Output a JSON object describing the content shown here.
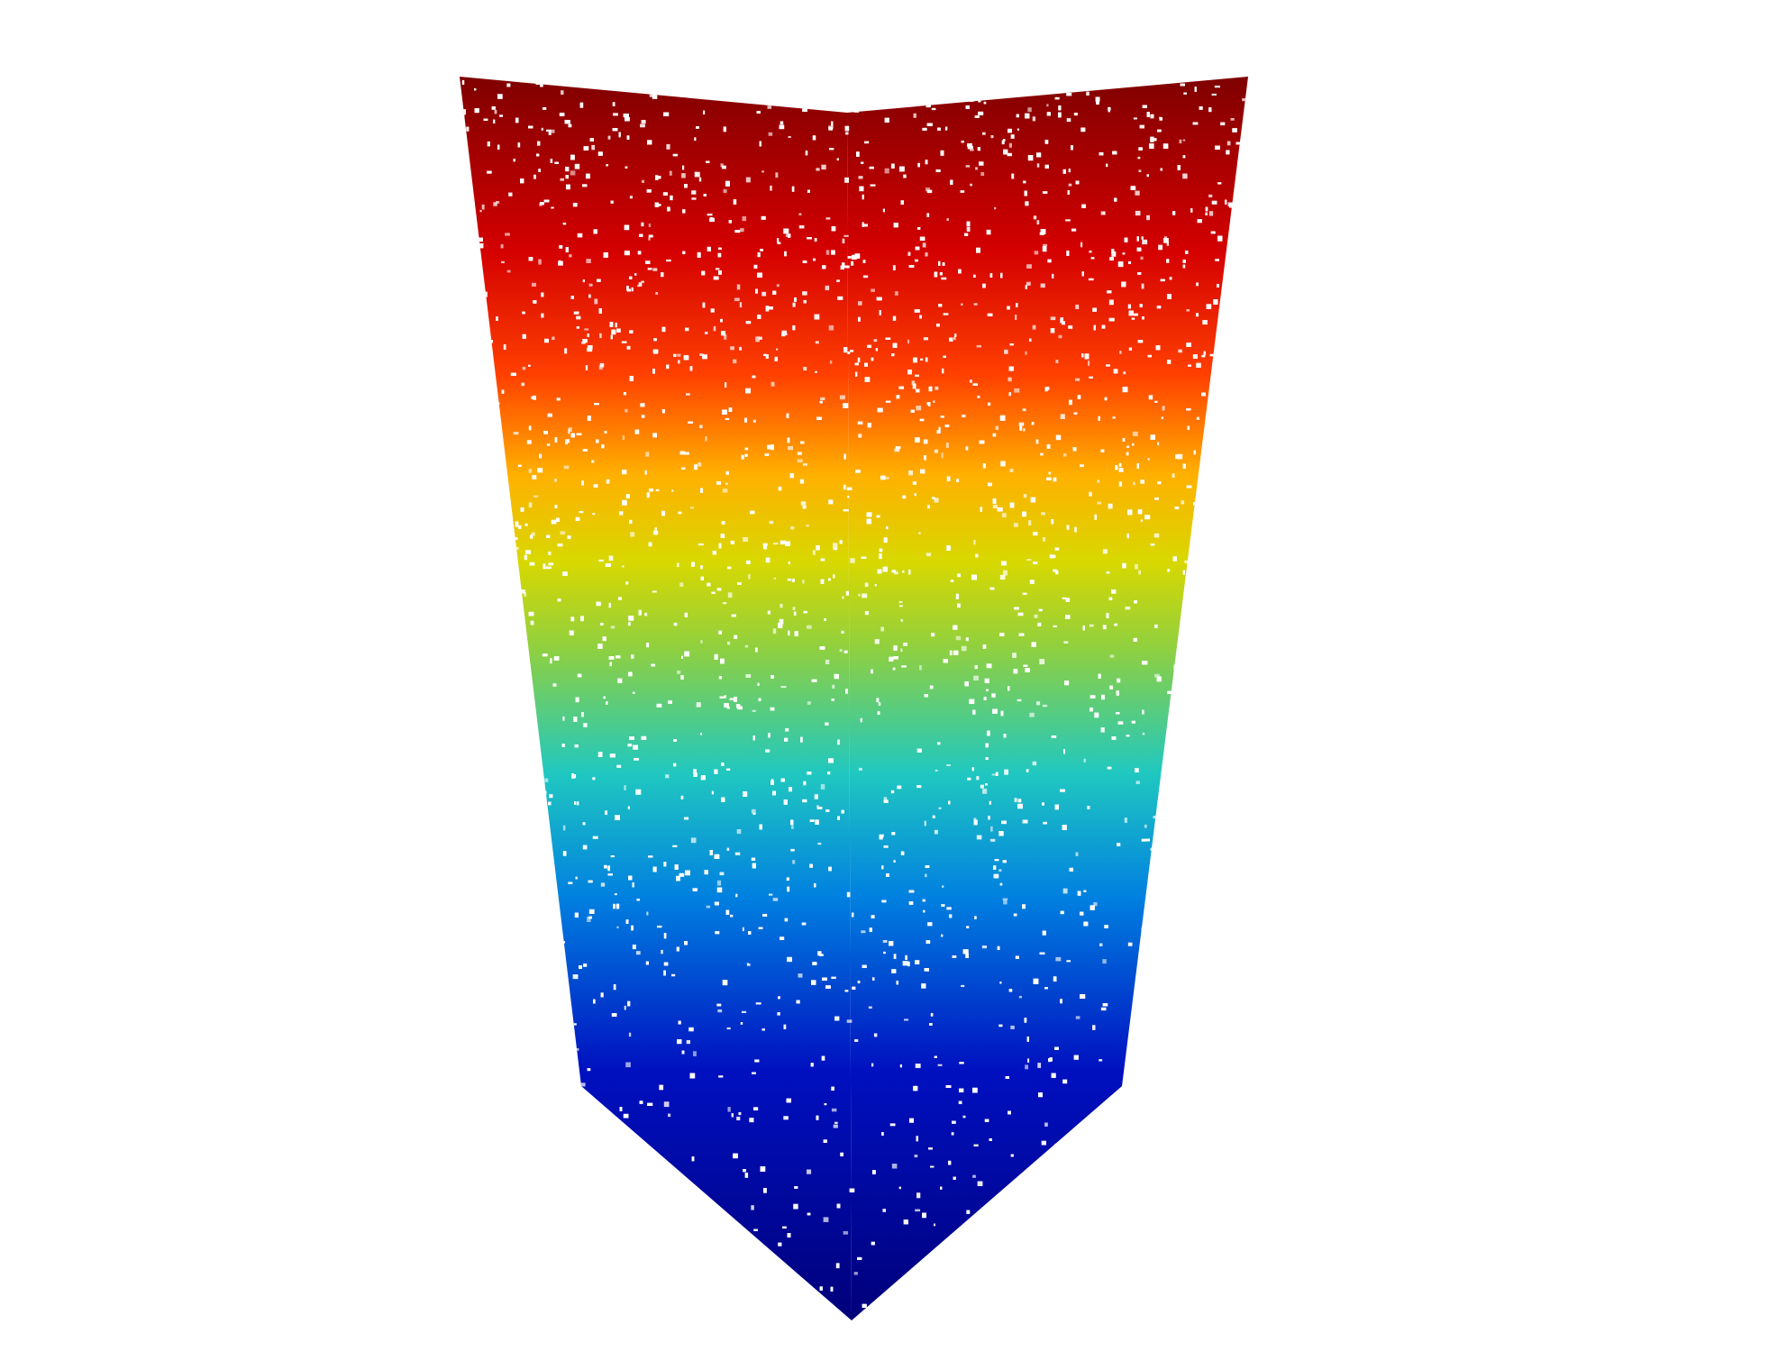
{
  "scene": {
    "type": "point-cloud",
    "shape": "box-corner-view",
    "colormap": "jet",
    "colormap_axis": "vertical",
    "colormap_stops": [
      "#7f0000",
      "#d40000",
      "#ff4000",
      "#ffb000",
      "#d8d800",
      "#8fd040",
      "#20c8c0",
      "#0080e0",
      "#0010c0",
      "#00007a"
    ],
    "background_color": "#ffffff",
    "gap_color": "#ffffff"
  }
}
